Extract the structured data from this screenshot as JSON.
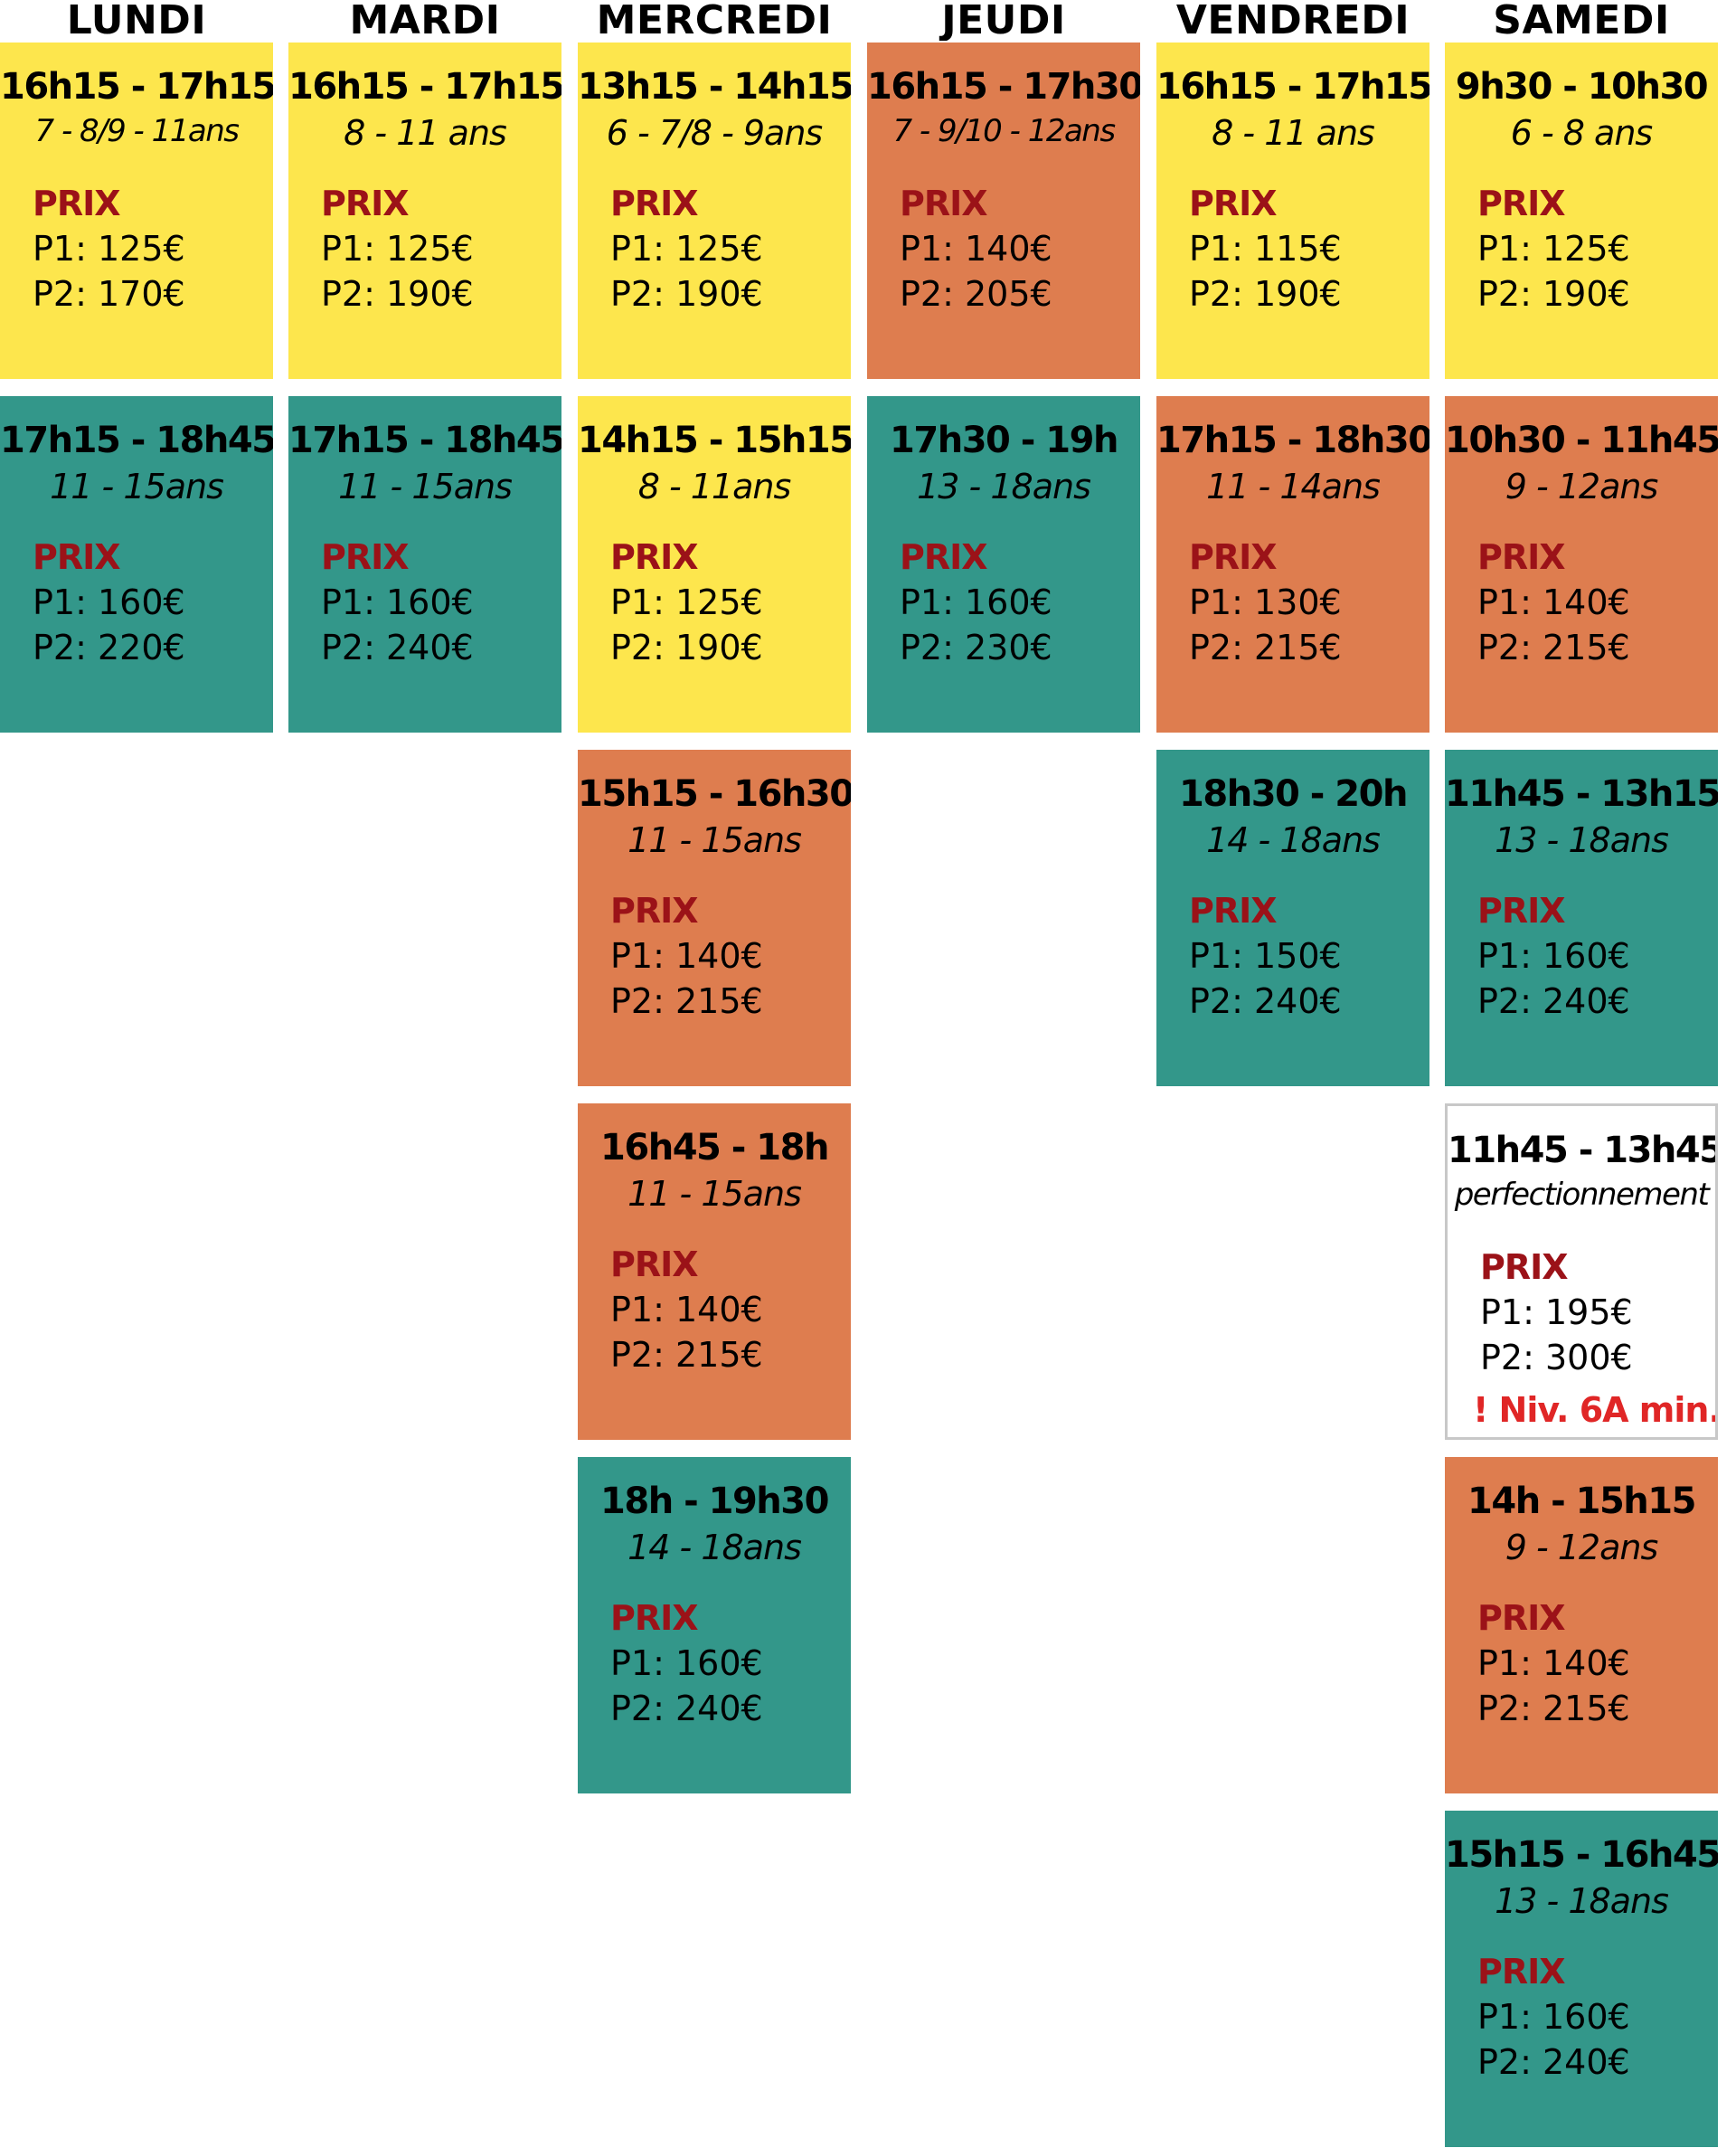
{
  "colors": {
    "yellow": "#fde64d",
    "orange": "#de7d4f",
    "teal": "#33978a",
    "white": "#ffffff",
    "prix_label": "#9b1218",
    "warning": "#e02626"
  },
  "days": [
    {
      "name": "LUNDI",
      "slots": [
        {
          "time": "16h15 - 17h15",
          "ages": "7 - 8/9 - 11ans",
          "prix_label": "PRIX",
          "p1": "P1: 125€",
          "p2": "P2: 170€",
          "color": "yellow"
        },
        {
          "time": "17h15 - 18h45",
          "ages": "11 - 15ans",
          "prix_label": "PRIX",
          "p1": "P1: 160€",
          "p2": "P2: 220€",
          "color": "teal"
        }
      ]
    },
    {
      "name": "MARDI",
      "slots": [
        {
          "time": "16h15 - 17h15",
          "ages": "8 - 11 ans",
          "prix_label": "PRIX",
          "p1": "P1: 125€",
          "p2": "P2: 190€",
          "color": "yellow"
        },
        {
          "time": "17h15 - 18h45",
          "ages": "11 - 15ans",
          "prix_label": "PRIX",
          "p1": "P1: 160€",
          "p2": "P2: 240€",
          "color": "teal"
        }
      ]
    },
    {
      "name": "MERCREDI",
      "slots": [
        {
          "time": "13h15 - 14h15",
          "ages": "6 - 7/8 - 9ans",
          "prix_label": "PRIX",
          "p1": "P1: 125€",
          "p2": "P2: 190€",
          "color": "yellow"
        },
        {
          "time": "14h15 - 15h15",
          "ages": "8 - 11ans",
          "prix_label": "PRIX",
          "p1": "P1: 125€",
          "p2": "P2: 190€",
          "color": "yellow"
        },
        {
          "time": "15h15 - 16h30",
          "ages": "11 - 15ans",
          "prix_label": "PRIX",
          "p1": "P1: 140€",
          "p2": "P2: 215€",
          "color": "orange"
        },
        {
          "time": "16h45 - 18h",
          "ages": "11 - 15ans",
          "prix_label": "PRIX",
          "p1": "P1: 140€",
          "p2": "P2: 215€",
          "color": "orange"
        },
        {
          "time": "18h - 19h30",
          "ages": "14 - 18ans",
          "prix_label": "PRIX",
          "p1": "P1: 160€",
          "p2": "P2: 240€",
          "color": "teal"
        }
      ]
    },
    {
      "name": "JEUDI",
      "slots": [
        {
          "time": "16h15 - 17h30",
          "ages": "7 - 9/10 - 12ans",
          "prix_label": "PRIX",
          "p1": "P1: 140€",
          "p2": "P2: 205€",
          "color": "orange"
        },
        {
          "time": "17h30 - 19h",
          "ages": "13 - 18ans",
          "prix_label": "PRIX",
          "p1": "P1: 160€",
          "p2": "P2: 230€",
          "color": "teal"
        }
      ]
    },
    {
      "name": "VENDREDI",
      "slots": [
        {
          "time": "16h15 - 17h15",
          "ages": "8 - 11 ans",
          "prix_label": "PRIX",
          "p1": "P1: 115€",
          "p2": "P2: 190€",
          "color": "yellow"
        },
        {
          "time": "17h15 - 18h30",
          "ages": "11 - 14ans",
          "prix_label": "PRIX",
          "p1": "P1: 130€",
          "p2": "P2: 215€",
          "color": "orange"
        },
        {
          "time": "18h30 - 20h",
          "ages": "14 - 18ans",
          "prix_label": "PRIX",
          "p1": "P1: 150€",
          "p2": "P2: 240€",
          "color": "teal"
        }
      ]
    },
    {
      "name": "SAMEDI",
      "slots": [
        {
          "time": "9h30 - 10h30",
          "ages": "6 - 8 ans",
          "prix_label": "PRIX",
          "p1": "P1: 125€",
          "p2": "P2: 190€",
          "color": "yellow"
        },
        {
          "time": "10h30 - 11h45",
          "ages": "9 - 12ans",
          "prix_label": "PRIX",
          "p1": "P1: 140€",
          "p2": "P2: 215€",
          "color": "orange"
        },
        {
          "time": "11h45 - 13h15",
          "ages": "13 - 18ans",
          "prix_label": "PRIX",
          "p1": "P1: 160€",
          "p2": "P2: 240€",
          "color": "teal"
        },
        {
          "time": "11h45 - 13h45",
          "ages": "perfectionnement",
          "prix_label": "PRIX",
          "p1": "P1: 195€",
          "p2": "P2: 300€",
          "warning": "! Niv. 6A min.",
          "color": "white"
        },
        {
          "time": "14h - 15h15",
          "ages": "9 - 12ans",
          "prix_label": "PRIX",
          "p1": "P1: 140€",
          "p2": "P2: 215€",
          "color": "orange"
        },
        {
          "time": "15h15 - 16h45",
          "ages": "13 - 18ans",
          "prix_label": "PRIX",
          "p1": "P1: 160€",
          "p2": "P2: 240€",
          "color": "teal"
        }
      ]
    }
  ]
}
